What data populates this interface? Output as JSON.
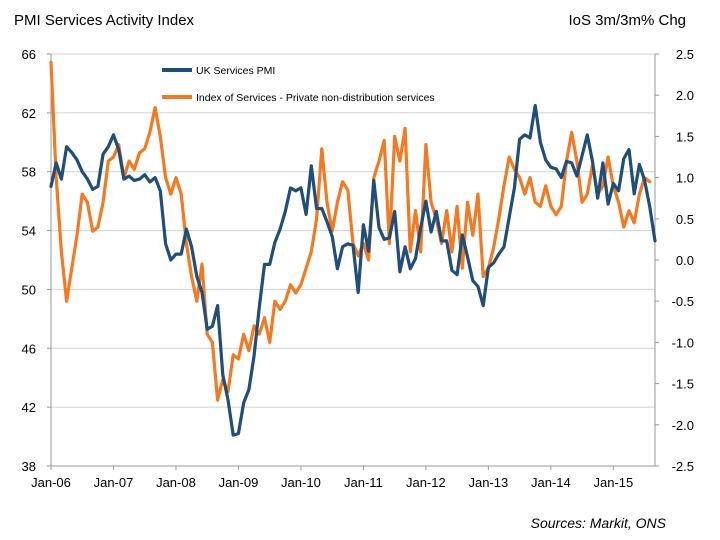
{
  "chart_data": {
    "type": "line",
    "title": "PMI Services Activity Index",
    "right_title": "IoS 3m/3m% Chg",
    "source": "Sources: Markit, ONS",
    "x_ticks": [
      "Jan-06",
      "Jan-07",
      "Jan-08",
      "Jan-09",
      "Jan-10",
      "Jan-11",
      "Jan-12",
      "Jan-13",
      "Jan-14",
      "Jan-15"
    ],
    "y_left": {
      "min": 38,
      "max": 66,
      "ticks": [
        "38",
        "42",
        "46",
        "50",
        "54",
        "58",
        "62",
        "66"
      ]
    },
    "y_right": {
      "min": -2.5,
      "max": 2.5,
      "ticks": [
        "-2.5",
        "-2.0",
        "-1.5",
        "-1.0",
        "-0.5",
        "0.0",
        "0.5",
        "1.0",
        "1.5",
        "2.0",
        "2.5"
      ]
    },
    "grid": "horizontal",
    "legend": "top-center",
    "series": [
      {
        "name": "UK Services PMI",
        "axis": "left",
        "color": "#1F4E79",
        "points": [
          [
            "2006-01",
            57.0
          ],
          [
            "2006-02",
            58.6
          ],
          [
            "2006-03",
            57.5
          ],
          [
            "2006-04",
            59.7
          ],
          [
            "2006-05",
            59.3
          ],
          [
            "2006-06",
            58.8
          ],
          [
            "2006-07",
            58.0
          ],
          [
            "2006-08",
            57.5
          ],
          [
            "2006-09",
            56.8
          ],
          [
            "2006-10",
            57.0
          ],
          [
            "2006-11",
            59.2
          ],
          [
            "2006-12",
            59.7
          ],
          [
            "2007-01",
            60.5
          ],
          [
            "2007-02",
            59.5
          ],
          [
            "2007-03",
            57.5
          ],
          [
            "2007-04",
            57.7
          ],
          [
            "2007-05",
            57.4
          ],
          [
            "2007-06",
            57.5
          ],
          [
            "2007-07",
            57.8
          ],
          [
            "2007-08",
            57.3
          ],
          [
            "2007-09",
            57.6
          ],
          [
            "2007-10",
            56.7
          ],
          [
            "2007-11",
            53.1
          ],
          [
            "2007-12",
            52.0
          ],
          [
            "2008-01",
            52.4
          ],
          [
            "2008-02",
            52.4
          ],
          [
            "2008-03",
            54.1
          ],
          [
            "2008-04",
            52.9
          ],
          [
            "2008-05",
            50.9
          ],
          [
            "2008-06",
            49.8
          ],
          [
            "2008-07",
            47.3
          ],
          [
            "2008-08",
            47.5
          ],
          [
            "2008-09",
            48.9
          ],
          [
            "2008-10",
            44.2
          ],
          [
            "2008-11",
            42.5
          ],
          [
            "2008-12",
            40.1
          ],
          [
            "2009-01",
            40.2
          ],
          [
            "2009-02",
            42.3
          ],
          [
            "2009-03",
            43.2
          ],
          [
            "2009-04",
            45.5
          ],
          [
            "2009-05",
            48.8
          ],
          [
            "2009-06",
            51.7
          ],
          [
            "2009-07",
            51.7
          ],
          [
            "2009-08",
            53.2
          ],
          [
            "2009-09",
            54.1
          ],
          [
            "2009-10",
            55.3
          ],
          [
            "2009-11",
            56.9
          ],
          [
            "2009-12",
            56.7
          ],
          [
            "2010-01",
            56.9
          ],
          [
            "2010-02",
            55.1
          ],
          [
            "2010-03",
            58.4
          ],
          [
            "2010-04",
            55.5
          ],
          [
            "2010-05",
            55.5
          ],
          [
            "2010-06",
            54.6
          ],
          [
            "2010-07",
            53.6
          ],
          [
            "2010-08",
            51.4
          ],
          [
            "2010-09",
            52.9
          ],
          [
            "2010-10",
            53.1
          ],
          [
            "2010-11",
            53.0
          ],
          [
            "2010-12",
            49.8
          ],
          [
            "2011-01",
            54.4
          ],
          [
            "2011-02",
            52.6
          ],
          [
            "2011-03",
            57.4
          ],
          [
            "2011-04",
            54.2
          ],
          [
            "2011-05",
            53.4
          ],
          [
            "2011-06",
            53.5
          ],
          [
            "2011-07",
            55.3
          ],
          [
            "2011-08",
            51.2
          ],
          [
            "2011-09",
            52.9
          ],
          [
            "2011-10",
            51.4
          ],
          [
            "2011-11",
            52.1
          ],
          [
            "2011-12",
            54.2
          ],
          [
            "2012-01",
            56.0
          ],
          [
            "2012-02",
            53.9
          ],
          [
            "2012-03",
            55.3
          ],
          [
            "2012-04",
            53.3
          ],
          [
            "2012-05",
            53.3
          ],
          [
            "2012-06",
            51.3
          ],
          [
            "2012-07",
            51.0
          ],
          [
            "2012-08",
            53.7
          ],
          [
            "2012-09",
            52.2
          ],
          [
            "2012-10",
            50.6
          ],
          [
            "2012-11",
            50.2
          ],
          [
            "2012-12",
            48.9
          ],
          [
            "2013-01",
            51.5
          ],
          [
            "2013-02",
            51.8
          ],
          [
            "2013-03",
            52.4
          ],
          [
            "2013-04",
            52.9
          ],
          [
            "2013-05",
            54.9
          ],
          [
            "2013-06",
            56.9
          ],
          [
            "2013-07",
            60.2
          ],
          [
            "2013-08",
            60.5
          ],
          [
            "2013-09",
            60.3
          ],
          [
            "2013-10",
            62.5
          ],
          [
            "2013-11",
            60.0
          ],
          [
            "2013-12",
            58.8
          ],
          [
            "2014-01",
            58.3
          ],
          [
            "2014-02",
            58.2
          ],
          [
            "2014-03",
            57.6
          ],
          [
            "2014-04",
            58.7
          ],
          [
            "2014-05",
            58.6
          ],
          [
            "2014-06",
            57.7
          ],
          [
            "2014-07",
            59.1
          ],
          [
            "2014-08",
            60.5
          ],
          [
            "2014-09",
            58.7
          ],
          [
            "2014-10",
            56.2
          ],
          [
            "2014-11",
            58.6
          ],
          [
            "2014-12",
            55.8
          ],
          [
            "2015-01",
            57.2
          ],
          [
            "2015-02",
            56.7
          ],
          [
            "2015-03",
            58.9
          ],
          [
            "2015-04",
            59.5
          ],
          [
            "2015-05",
            56.5
          ],
          [
            "2015-06",
            58.5
          ],
          [
            "2015-07",
            57.4
          ],
          [
            "2015-08",
            55.6
          ],
          [
            "2015-09",
            53.3
          ]
        ]
      },
      {
        "name": "Index of Services - Private non-distribution services",
        "axis": "right",
        "color": "#F47920",
        "points": [
          [
            "2006-01",
            2.4
          ],
          [
            "2006-02",
            1.0
          ],
          [
            "2006-03",
            0.1
          ],
          [
            "2006-04",
            -0.5
          ],
          [
            "2006-05",
            -0.1
          ],
          [
            "2006-06",
            0.3
          ],
          [
            "2006-07",
            0.8
          ],
          [
            "2006-08",
            0.7
          ],
          [
            "2006-09",
            0.35
          ],
          [
            "2006-10",
            0.4
          ],
          [
            "2006-11",
            0.7
          ],
          [
            "2006-12",
            1.2
          ],
          [
            "2007-01",
            1.25
          ],
          [
            "2007-02",
            1.4
          ],
          [
            "2007-03",
            1.0
          ],
          [
            "2007-04",
            1.2
          ],
          [
            "2007-05",
            1.1
          ],
          [
            "2007-06",
            1.3
          ],
          [
            "2007-07",
            1.35
          ],
          [
            "2007-08",
            1.55
          ],
          [
            "2007-09",
            1.85
          ],
          [
            "2007-10",
            1.5
          ],
          [
            "2007-11",
            1.0
          ],
          [
            "2007-12",
            0.8
          ],
          [
            "2008-01",
            1.0
          ],
          [
            "2008-02",
            0.8
          ],
          [
            "2008-03",
            0.2
          ],
          [
            "2008-04",
            -0.2
          ],
          [
            "2008-05",
            -0.5
          ],
          [
            "2008-06",
            -0.05
          ],
          [
            "2008-07",
            -0.9
          ],
          [
            "2008-08",
            -1.0
          ],
          [
            "2008-09",
            -1.7
          ],
          [
            "2008-10",
            -1.45
          ],
          [
            "2008-11",
            -1.6
          ],
          [
            "2008-12",
            -1.15
          ],
          [
            "2009-01",
            -1.2
          ],
          [
            "2009-02",
            -0.9
          ],
          [
            "2009-03",
            -1.1
          ],
          [
            "2009-04",
            -0.8
          ],
          [
            "2009-05",
            -0.9
          ],
          [
            "2009-06",
            -0.7
          ],
          [
            "2009-07",
            -1.0
          ],
          [
            "2009-08",
            -0.5
          ],
          [
            "2009-09",
            -0.6
          ],
          [
            "2009-10",
            -0.5
          ],
          [
            "2009-11",
            -0.3
          ],
          [
            "2009-12",
            -0.4
          ],
          [
            "2010-01",
            -0.3
          ],
          [
            "2010-02",
            -0.1
          ],
          [
            "2010-03",
            0.1
          ],
          [
            "2010-04",
            0.5
          ],
          [
            "2010-05",
            1.35
          ],
          [
            "2010-06",
            0.7
          ],
          [
            "2010-07",
            0.35
          ],
          [
            "2010-08",
            0.7
          ],
          [
            "2010-09",
            0.95
          ],
          [
            "2010-10",
            0.85
          ],
          [
            "2010-11",
            0.2
          ],
          [
            "2010-12",
            0.05
          ],
          [
            "2011-01",
            0.2
          ],
          [
            "2011-02",
            0.0
          ],
          [
            "2011-03",
            1.0
          ],
          [
            "2011-04",
            1.2
          ],
          [
            "2011-05",
            1.45
          ],
          [
            "2011-06",
            0.2
          ],
          [
            "2011-07",
            1.5
          ],
          [
            "2011-08",
            1.2
          ],
          [
            "2011-09",
            1.6
          ],
          [
            "2011-10",
            0.1
          ],
          [
            "2011-11",
            0.6
          ],
          [
            "2011-12",
            0.1
          ],
          [
            "2012-01",
            1.4
          ],
          [
            "2012-02",
            0.7
          ],
          [
            "2012-03",
            0.5
          ],
          [
            "2012-04",
            0.2
          ],
          [
            "2012-05",
            0.6
          ],
          [
            "2012-06",
            0.1
          ],
          [
            "2012-07",
            0.65
          ],
          [
            "2012-08",
            -0.1
          ],
          [
            "2012-09",
            0.7
          ],
          [
            "2012-10",
            0.3
          ],
          [
            "2012-11",
            0.8
          ],
          [
            "2012-12",
            -0.2
          ],
          [
            "2013-01",
            -0.1
          ],
          [
            "2013-02",
            0.15
          ],
          [
            "2013-03",
            0.5
          ],
          [
            "2013-04",
            0.9
          ],
          [
            "2013-05",
            1.25
          ],
          [
            "2013-06",
            1.1
          ],
          [
            "2013-07",
            1.0
          ],
          [
            "2013-08",
            0.8
          ],
          [
            "2013-09",
            1.0
          ],
          [
            "2013-10",
            0.7
          ],
          [
            "2013-11",
            0.65
          ],
          [
            "2013-12",
            0.9
          ],
          [
            "2014-01",
            0.65
          ],
          [
            "2014-02",
            0.55
          ],
          [
            "2014-03",
            0.65
          ],
          [
            "2014-04",
            1.2
          ],
          [
            "2014-05",
            1.55
          ],
          [
            "2014-06",
            1.2
          ],
          [
            "2014-07",
            0.7
          ],
          [
            "2014-08",
            0.8
          ],
          [
            "2014-09",
            1.15
          ],
          [
            "2014-10",
            0.8
          ],
          [
            "2014-11",
            0.9
          ],
          [
            "2014-12",
            1.25
          ],
          [
            "2015-01",
            0.9
          ],
          [
            "2015-02",
            0.7
          ],
          [
            "2015-03",
            0.4
          ],
          [
            "2015-04",
            0.6
          ],
          [
            "2015-05",
            0.45
          ],
          [
            "2015-06",
            0.8
          ],
          [
            "2015-07",
            1.0
          ],
          [
            "2015-08",
            0.95
          ]
        ]
      }
    ]
  }
}
